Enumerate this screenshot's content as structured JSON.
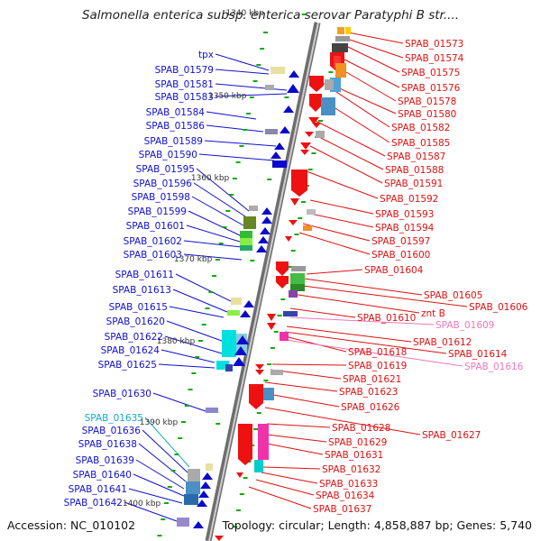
{
  "title": "Salmonella enterica subsp. enterica serovar Paratyphi B str....",
  "accession": "Accession: NC_010102",
  "topology": "Topology: circular; Length: 4,858,887 bp; Genes: 5,740",
  "colors": {
    "left_label": "#1010cc",
    "right_label": "#dd1111",
    "pink_label": "#ee77bb",
    "cyan_label": "#11aacc",
    "tick": "#11aa11",
    "axis": "#888888"
  },
  "axis_ticks": [
    "1340 kbp",
    "1350 kbp",
    "1360 kbp",
    "1370 kbp",
    "1380 kbp",
    "1390 kbp",
    "1400 kbp"
  ],
  "left_labels": [
    {
      "text": "tpx",
      "color": "blue"
    },
    {
      "text": "SPAB_01579",
      "color": "blue"
    },
    {
      "text": "SPAB_01581",
      "color": "blue"
    },
    {
      "text": "SPAB_01583",
      "color": "blue"
    },
    {
      "text": "SPAB_01584",
      "color": "blue"
    },
    {
      "text": "SPAB_01586",
      "color": "blue"
    },
    {
      "text": "SPAB_01589",
      "color": "blue"
    },
    {
      "text": "SPAB_01590",
      "color": "blue"
    },
    {
      "text": "SPAB_01595",
      "color": "blue"
    },
    {
      "text": "SPAB_01596",
      "color": "blue"
    },
    {
      "text": "SPAB_01598",
      "color": "blue"
    },
    {
      "text": "SPAB_01599",
      "color": "blue"
    },
    {
      "text": "SPAB_01601",
      "color": "blue"
    },
    {
      "text": "SPAB_01602",
      "color": "blue"
    },
    {
      "text": "SPAB_01603",
      "color": "blue"
    },
    {
      "text": "SPAB_01611",
      "color": "blue"
    },
    {
      "text": "SPAB_01613",
      "color": "blue"
    },
    {
      "text": "SPAB_01615",
      "color": "blue"
    },
    {
      "text": "SPAB_01620",
      "color": "blue"
    },
    {
      "text": "SPAB_01622",
      "color": "blue"
    },
    {
      "text": "SPAB_01624",
      "color": "blue"
    },
    {
      "text": "SPAB_01625",
      "color": "blue"
    },
    {
      "text": "SPAB_01630",
      "color": "blue"
    },
    {
      "text": "SPAB_01635",
      "color": "cyan"
    },
    {
      "text": "SPAB_01636",
      "color": "blue"
    },
    {
      "text": "SPAB_01638",
      "color": "blue"
    },
    {
      "text": "SPAB_01639",
      "color": "blue"
    },
    {
      "text": "SPAB_01640",
      "color": "blue"
    },
    {
      "text": "SPAB_01641",
      "color": "blue"
    },
    {
      "text": "SPAB_01642",
      "color": "blue"
    }
  ],
  "right_labels": [
    {
      "text": "SPAB_01573",
      "color": "red"
    },
    {
      "text": "SPAB_01574",
      "color": "red"
    },
    {
      "text": "SPAB_01575",
      "color": "red"
    },
    {
      "text": "SPAB_01576",
      "color": "red"
    },
    {
      "text": "SPAB_01578",
      "color": "red"
    },
    {
      "text": "SPAB_01580",
      "color": "red"
    },
    {
      "text": "SPAB_01582",
      "color": "red"
    },
    {
      "text": "SPAB_01585",
      "color": "red"
    },
    {
      "text": "SPAB_01587",
      "color": "red"
    },
    {
      "text": "SPAB_01588",
      "color": "red"
    },
    {
      "text": "SPAB_01591",
      "color": "red"
    },
    {
      "text": "SPAB_01592",
      "color": "red"
    },
    {
      "text": "SPAB_01593",
      "color": "red"
    },
    {
      "text": "SPAB_01594",
      "color": "red"
    },
    {
      "text": "SPAB_01597",
      "color": "red"
    },
    {
      "text": "SPAB_01600",
      "color": "red"
    },
    {
      "text": "SPAB_01604",
      "color": "red"
    },
    {
      "text": "SPAB_01605",
      "color": "red"
    },
    {
      "text": "SPAB_01606",
      "color": "red"
    },
    {
      "text": "znt B",
      "color": "red"
    },
    {
      "text": "SPAB_01610",
      "color": "red"
    },
    {
      "text": "SPAB_01609",
      "color": "pink"
    },
    {
      "text": "SPAB_01612",
      "color": "red"
    },
    {
      "text": "SPAB_01614",
      "color": "red"
    },
    {
      "text": "SPAB_01618",
      "color": "red"
    },
    {
      "text": "SPAB_01616",
      "color": "pink"
    },
    {
      "text": "SPAB_01619",
      "color": "red"
    },
    {
      "text": "SPAB_01621",
      "color": "red"
    },
    {
      "text": "SPAB_01623",
      "color": "red"
    },
    {
      "text": "SPAB_01626",
      "color": "red"
    },
    {
      "text": "SPAB_01627",
      "color": "red"
    },
    {
      "text": "SPAB_01628",
      "color": "red"
    },
    {
      "text": "SPAB_01629",
      "color": "red"
    },
    {
      "text": "SPAB_01631",
      "color": "red"
    },
    {
      "text": "SPAB_01632",
      "color": "red"
    },
    {
      "text": "SPAB_01633",
      "color": "red"
    },
    {
      "text": "SPAB_01634",
      "color": "red"
    },
    {
      "text": "SPAB_01637",
      "color": "red"
    }
  ]
}
